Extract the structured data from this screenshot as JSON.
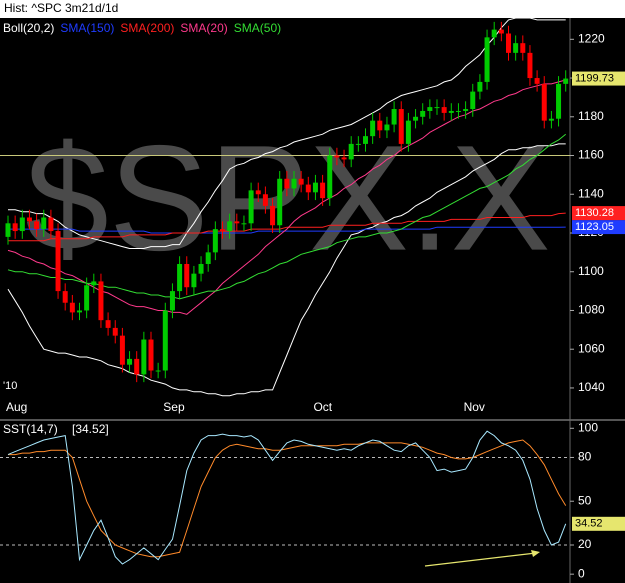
{
  "chart_data": [
    {
      "type": "candlestick",
      "title": "Hist: ^SPC 3m21d/1d",
      "watermark": "$SPX.X",
      "year_label": "'10",
      "categories": [
        "Aug",
        null,
        null,
        null,
        null,
        null,
        null,
        null,
        null,
        null,
        null,
        null,
        null,
        null,
        null,
        null,
        null,
        null,
        null,
        null,
        null,
        null,
        "Sep",
        null,
        null,
        null,
        null,
        null,
        null,
        null,
        null,
        null,
        null,
        null,
        null,
        null,
        null,
        null,
        null,
        null,
        null,
        null,
        null,
        "Oct",
        null,
        null,
        null,
        null,
        null,
        null,
        null,
        null,
        null,
        null,
        null,
        null,
        null,
        null,
        null,
        null,
        null,
        null,
        null,
        null,
        "Nov",
        null,
        null,
        null,
        null,
        null,
        null,
        null,
        null,
        null,
        null,
        null,
        null,
        null,
        null
      ],
      "open": [
        1118,
        1125,
        1121,
        1128,
        1126,
        1122,
        1128,
        1121,
        1090,
        1084,
        1079,
        1080,
        1093,
        1095,
        1075,
        1071,
        1067,
        1052,
        1055,
        1047,
        1065,
        1049,
        1049,
        1080,
        1090,
        1104,
        1092,
        1099,
        1104,
        1110,
        1122,
        1121,
        1126,
        1125,
        1125,
        1142,
        1140,
        1134,
        1124,
        1148,
        1143,
        1148,
        1145,
        1141,
        1146,
        1138,
        1160,
        1159,
        1158,
        1166,
        1166,
        1170,
        1178,
        1173,
        1176,
        1184,
        1166,
        1178,
        1180,
        1183,
        1185,
        1185,
        1182,
        1183,
        1183,
        1184,
        1193,
        1198,
        1221,
        1225,
        1223,
        1213,
        1218,
        1213,
        1200,
        1197,
        1178,
        1179,
        1197
      ],
      "high": [
        1129,
        1129,
        1132,
        1132,
        1130,
        1132,
        1132,
        1125,
        1094,
        1088,
        1084,
        1097,
        1099,
        1099,
        1079,
        1075,
        1071,
        1059,
        1059,
        1069,
        1069,
        1053,
        1084,
        1094,
        1108,
        1108,
        1103,
        1108,
        1114,
        1126,
        1126,
        1130,
        1130,
        1129,
        1146,
        1146,
        1144,
        1138,
        1152,
        1152,
        1152,
        1152,
        1149,
        1150,
        1150,
        1164,
        1164,
        1163,
        1170,
        1170,
        1174,
        1182,
        1182,
        1180,
        1188,
        1188,
        1182,
        1184,
        1187,
        1189,
        1189,
        1189,
        1187,
        1187,
        1188,
        1197,
        1202,
        1225,
        1229,
        1229,
        1227,
        1222,
        1222,
        1217,
        1204,
        1201,
        1183,
        1201,
        1204
      ],
      "low": [
        1114,
        1117,
        1117,
        1122,
        1118,
        1118,
        1117,
        1086,
        1080,
        1075,
        1075,
        1076,
        1089,
        1071,
        1067,
        1063,
        1048,
        1048,
        1043,
        1043,
        1045,
        1045,
        1045,
        1076,
        1086,
        1088,
        1088,
        1095,
        1100,
        1106,
        1117,
        1117,
        1121,
        1121,
        1121,
        1136,
        1130,
        1120,
        1120,
        1139,
        1139,
        1141,
        1137,
        1137,
        1134,
        1134,
        1155,
        1154,
        1154,
        1162,
        1162,
        1166,
        1169,
        1169,
        1172,
        1162,
        1162,
        1174,
        1176,
        1179,
        1181,
        1178,
        1178,
        1179,
        1179,
        1180,
        1189,
        1194,
        1217,
        1219,
        1209,
        1209,
        1209,
        1196,
        1193,
        1174,
        1174,
        1175,
        1193
      ],
      "close": [
        1125,
        1121,
        1128,
        1126,
        1122,
        1128,
        1121,
        1090,
        1084,
        1079,
        1080,
        1093,
        1095,
        1075,
        1071,
        1067,
        1052,
        1055,
        1047,
        1065,
        1049,
        1049,
        1080,
        1090,
        1104,
        1092,
        1099,
        1104,
        1110,
        1122,
        1121,
        1126,
        1125,
        1125,
        1142,
        1140,
        1134,
        1124,
        1148,
        1143,
        1148,
        1145,
        1141,
        1146,
        1138,
        1160,
        1159,
        1158,
        1166,
        1166,
        1170,
        1178,
        1173,
        1176,
        1184,
        1166,
        1178,
        1180,
        1183,
        1185,
        1185,
        1182,
        1183,
        1183,
        1184,
        1193,
        1198,
        1221,
        1225,
        1223,
        1213,
        1218,
        1213,
        1200,
        1197,
        1178,
        1179,
        1197,
        1199.73
      ],
      "up_color": "#00cc00",
      "down_color": "#ff0000",
      "bands": [
        {
          "name": "Boll(20,2)",
          "color": "#ffffff",
          "upper": [
            1132,
            1132,
            1131,
            1131,
            1130,
            1130,
            1128,
            1126,
            1123,
            1121,
            1119,
            1118,
            1117,
            1116,
            1115,
            1114,
            1113,
            1112,
            1112,
            1112,
            1113,
            1113,
            1113,
            1114,
            1114,
            1120,
            1125,
            1131,
            1136,
            1142,
            1147,
            1153,
            1155,
            1156,
            1158,
            1159,
            1161,
            1162,
            1164,
            1165,
            1167,
            1168,
            1169,
            1170,
            1171,
            1173,
            1174,
            1175,
            1176,
            1178,
            1180,
            1182,
            1184,
            1187,
            1189,
            1191,
            1192,
            1193,
            1194,
            1195,
            1196,
            1198,
            1199,
            1202,
            1206,
            1209,
            1212,
            1217,
            1221,
            1226,
            1230,
            1231,
            1231,
            1231,
            1230,
            1230,
            1230,
            1230,
            1230
          ],
          "lower": [
            1091,
            1085,
            1079,
            1072,
            1066,
            1060,
            1059,
            1058,
            1058,
            1057,
            1056,
            1056,
            1055,
            1054,
            1052,
            1051,
            1050,
            1048,
            1047,
            1046,
            1044,
            1043,
            1042,
            1040,
            1039,
            1039,
            1038,
            1038,
            1037,
            1037,
            1036,
            1036,
            1037,
            1037,
            1038,
            1038,
            1039,
            1039,
            1048,
            1057,
            1066,
            1075,
            1081,
            1088,
            1094,
            1100,
            1107,
            1113,
            1119,
            1120,
            1122,
            1123,
            1125,
            1126,
            1128,
            1129,
            1131,
            1134,
            1136,
            1138,
            1141,
            1143,
            1145,
            1147,
            1149,
            1152,
            1154,
            1156,
            1158,
            1161,
            1163,
            1163,
            1164,
            1164,
            1165,
            1165,
            1165,
            1166,
            1166
          ]
        }
      ],
      "series": [
        {
          "name": "SMA(150)",
          "color": "#1f3cff",
          "value_label": "1123.05",
          "values": [
            1122,
            1122,
            1122,
            1122,
            1122,
            1122,
            1122,
            1122,
            1122,
            1122,
            1121,
            1121,
            1121,
            1121,
            1121,
            1121,
            1121,
            1121,
            1121,
            1121,
            1120,
            1120,
            1120,
            1120,
            1120,
            1120,
            1120,
            1120,
            1120,
            1120,
            1120,
            1120,
            1120,
            1120,
            1120,
            1121,
            1121,
            1121,
            1121,
            1121,
            1121,
            1121,
            1121,
            1121,
            1121,
            1121,
            1121,
            1121,
            1121,
            1121,
            1122,
            1122,
            1122,
            1122,
            1122,
            1122,
            1122,
            1122,
            1122,
            1122,
            1123,
            1123,
            1123,
            1123,
            1123,
            1123,
            1123,
            1123,
            1123,
            1123,
            1123,
            1123,
            1123,
            1123,
            1123,
            1123,
            1123,
            1123,
            1123.05
          ]
        },
        {
          "name": "SMA(200)",
          "color": "#ff2020",
          "values": [
            1116,
            1116,
            1116,
            1116,
            1116,
            1116,
            1117,
            1117,
            1117,
            1117,
            1117,
            1117,
            1118,
            1118,
            1118,
            1118,
            1118,
            1119,
            1119,
            1119,
            1119,
            1119,
            1119,
            1120,
            1120,
            1120,
            1120,
            1120,
            1121,
            1121,
            1121,
            1121,
            1121,
            1121,
            1122,
            1122,
            1122,
            1122,
            1122,
            1123,
            1123,
            1123,
            1123,
            1123,
            1123,
            1124,
            1124,
            1124,
            1124,
            1124,
            1124,
            1125,
            1125,
            1125,
            1125,
            1125,
            1126,
            1126,
            1126,
            1126,
            1126,
            1126,
            1127,
            1127,
            1127,
            1127,
            1127,
            1128,
            1128,
            1128,
            1128,
            1128,
            1128,
            1129,
            1129,
            1129,
            1129,
            1130,
            1130.28
          ]
        },
        {
          "name": "SMA(20)",
          "color": "#ff3a8c",
          "values": [
            1111,
            1110,
            1108,
            1107,
            1105,
            1104,
            1102,
            1101,
            1099,
            1098,
            1096,
            1094,
            1092,
            1090,
            1089,
            1087,
            1085,
            1083,
            1082,
            1082,
            1081,
            1080,
            1080,
            1079,
            1079,
            1078,
            1081,
            1084,
            1087,
            1090,
            1094,
            1097,
            1100,
            1103,
            1106,
            1109,
            1113,
            1116,
            1119,
            1122,
            1126,
            1129,
            1131,
            1133,
            1136,
            1138,
            1140,
            1143,
            1145,
            1148,
            1150,
            1153,
            1155,
            1158,
            1160,
            1163,
            1165,
            1167,
            1169,
            1172,
            1174,
            1176,
            1178,
            1180,
            1181,
            1183,
            1184,
            1186,
            1188,
            1189,
            1191,
            1192,
            1194,
            1195,
            1196,
            1197,
            1197,
            1198,
            1199
          ]
        },
        {
          "name": "SMA(50)",
          "color": "#33dd33",
          "values": [
            1101,
            1100,
            1100,
            1099,
            1099,
            1098,
            1097,
            1097,
            1096,
            1096,
            1095,
            1094,
            1094,
            1093,
            1092,
            1092,
            1091,
            1090,
            1089,
            1089,
            1088,
            1088,
            1087,
            1087,
            1086,
            1087,
            1088,
            1089,
            1090,
            1090,
            1091,
            1092,
            1094,
            1095,
            1097,
            1099,
            1100,
            1102,
            1104,
            1105,
            1107,
            1109,
            1110,
            1111,
            1112,
            1113,
            1115,
            1116,
            1117,
            1118,
            1118,
            1119,
            1120,
            1120,
            1121,
            1122,
            1124,
            1126,
            1128,
            1129,
            1131,
            1133,
            1135,
            1137,
            1139,
            1141,
            1143,
            1144,
            1146,
            1148,
            1150,
            1153,
            1155,
            1158,
            1160,
            1163,
            1166,
            1168,
            1171
          ]
        }
      ],
      "reference_lines": [
        1160
      ],
      "reference_color": "#c8c87a",
      "last_tag_color": "#e6e66e",
      "ylim": [
        1025,
        1231
      ],
      "yticks": [
        1040,
        1060,
        1080,
        1100,
        1120,
        1140,
        1160,
        1180,
        1200,
        1220
      ]
    },
    {
      "type": "line",
      "title": "SST(14,7)",
      "value_label": "[34.52]",
      "series": [
        {
          "color": "#a8e8ff",
          "values": [
            82,
            84,
            86,
            88,
            90,
            92,
            93,
            94,
            95,
            60,
            10,
            20,
            30,
            37,
            25,
            12,
            7,
            10,
            14,
            18,
            14,
            10,
            17,
            24,
            47,
            71,
            83,
            92,
            95,
            95,
            96,
            95,
            95,
            94,
            95,
            92,
            85,
            78,
            84,
            90,
            92,
            91,
            89,
            88,
            87,
            86,
            85,
            86,
            85,
            88,
            90,
            92,
            91,
            88,
            85,
            84,
            88,
            90,
            85,
            80,
            71,
            72,
            70,
            71,
            72,
            80,
            92,
            98,
            95,
            90,
            88,
            85,
            78,
            65,
            45,
            30,
            20,
            22,
            34.52
          ]
        },
        {
          "color": "#ff8a2a",
          "values": [
            82,
            82,
            83,
            83,
            84,
            84,
            85,
            85,
            85,
            80,
            65,
            50,
            40,
            30,
            25,
            20,
            18,
            16,
            14,
            13,
            12,
            12,
            13,
            14,
            15,
            30,
            45,
            60,
            70,
            80,
            85,
            88,
            89,
            88,
            87,
            86,
            86,
            85,
            85,
            86,
            87,
            88,
            88,
            88,
            88,
            88,
            88,
            89,
            89,
            89,
            90,
            90,
            90,
            90,
            90,
            90,
            89,
            88,
            87,
            85,
            83,
            82,
            80,
            79,
            79,
            80,
            82,
            84,
            86,
            88,
            90,
            91,
            92,
            88,
            82,
            75,
            65,
            55,
            47
          ]
        }
      ],
      "reference_lines": [
        20,
        80
      ],
      "ylim": [
        -4,
        105
      ],
      "yticks": [
        0,
        20,
        50,
        80,
        100
      ]
    }
  ]
}
